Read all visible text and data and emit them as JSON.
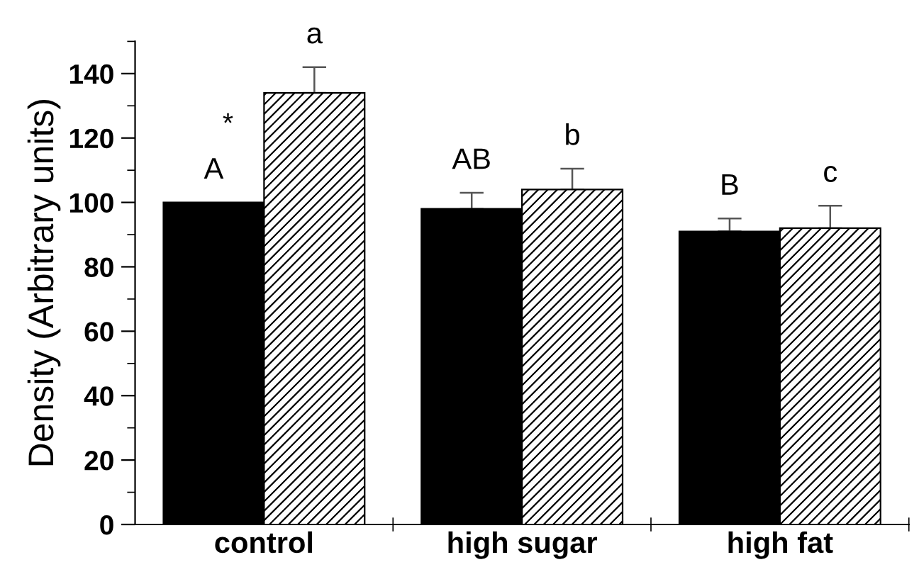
{
  "chart_data": {
    "type": "bar",
    "ylabel": "Density (Arbitrary units)",
    "categories": [
      "control",
      "high sugar",
      "high fat"
    ],
    "series": [
      {
        "color": "#000000",
        "values": [
          100,
          98,
          91
        ],
        "errors": [
          null,
          5,
          4
        ],
        "value_labels": [
          "A",
          "AB",
          "B"
        ]
      },
      {
        "color": "#000000",
        "values": [
          134,
          104,
          92
        ],
        "errors": [
          8,
          6.5,
          7
        ],
        "value_labels": [
          "a",
          "b",
          "c"
        ]
      }
    ],
    "annotations": [
      {
        "text": "*",
        "x": "control",
        "y": 124
      }
    ],
    "ylim": [
      0,
      150
    ],
    "yticks": [
      0,
      20,
      40,
      60,
      80,
      100,
      120,
      140
    ],
    "grid": false,
    "legend": false
  }
}
